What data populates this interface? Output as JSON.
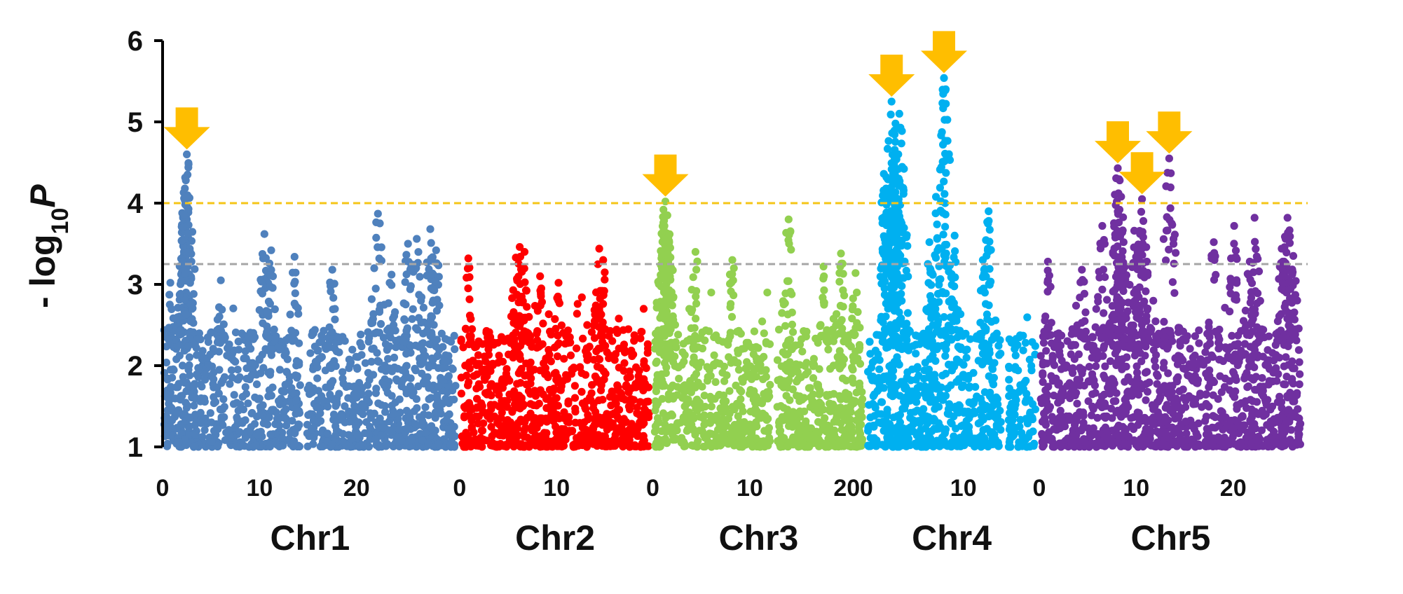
{
  "chart_data": {
    "type": "scatter",
    "title": "",
    "xlabel": "",
    "ylabel_main": "- log",
    "ylabel_sub": "10",
    "ylabel_italic": "P",
    "ylim": [
      1,
      6
    ],
    "y_ticks": [
      "1",
      "2",
      "3",
      "4",
      "5",
      "6"
    ],
    "thresholds": [
      {
        "value": 4.0,
        "color": "#F5C518",
        "style": "dashed"
      },
      {
        "value": 3.25,
        "color": "#A6A6A6",
        "style": "dashed"
      }
    ],
    "arrow_color": "#FFBE00",
    "grid": false,
    "legend": "none",
    "chromosomes": [
      {
        "name": "Chr1",
        "color": "#4F81BD",
        "length": 30.4,
        "ticks": [
          0,
          10,
          20
        ],
        "tick_labels": [
          "0",
          "10",
          "20"
        ],
        "gaps": [
          [
            14.2,
            14.9
          ]
        ],
        "peaks": [
          {
            "x": 2.5,
            "y": 4.6,
            "arrow": true
          },
          {
            "x": 2.4,
            "y": 4.28
          },
          {
            "x": 2.3,
            "y": 4.18
          },
          {
            "x": 2.2,
            "y": 3.86
          },
          {
            "x": 2.6,
            "y": 3.4
          },
          {
            "x": 2.1,
            "y": 3.28
          },
          {
            "x": 0.8,
            "y": 3.02
          },
          {
            "x": 10.5,
            "y": 3.62
          },
          {
            "x": 11.2,
            "y": 3.42
          },
          {
            "x": 13.6,
            "y": 3.34
          },
          {
            "x": 22.2,
            "y": 3.87
          },
          {
            "x": 26.2,
            "y": 3.56
          },
          {
            "x": 27.6,
            "y": 3.68
          },
          {
            "x": 28.2,
            "y": 3.42
          },
          {
            "x": 25.3,
            "y": 3.5
          },
          {
            "x": 17.5,
            "y": 3.18
          },
          {
            "x": 23.6,
            "y": 3.12
          },
          {
            "x": 6.0,
            "y": 3.05
          }
        ]
      },
      {
        "name": "Chr2",
        "color": "#FF0000",
        "length": 19.7,
        "ticks": [
          0,
          10
        ],
        "tick_labels": [
          "0",
          "10"
        ],
        "gaps": [],
        "peaks": [
          {
            "x": 0.9,
            "y": 3.32
          },
          {
            "x": 6.2,
            "y": 3.46
          },
          {
            "x": 6.7,
            "y": 3.4
          },
          {
            "x": 5.8,
            "y": 3.33
          },
          {
            "x": 14.4,
            "y": 3.44
          },
          {
            "x": 14.8,
            "y": 3.3
          },
          {
            "x": 8.3,
            "y": 3.1
          },
          {
            "x": 10.2,
            "y": 3.02
          }
        ]
      },
      {
        "name": "Chr3",
        "color": "#92D050",
        "length": 21.8,
        "ticks": [
          0,
          10,
          20
        ],
        "tick_labels": [
          "0",
          "10",
          "20"
        ],
        "gaps": [
          [
            12.1,
            12.8
          ]
        ],
        "peaks": [
          {
            "x": 1.3,
            "y": 4.02,
            "arrow": true
          },
          {
            "x": 1.1,
            "y": 3.92
          },
          {
            "x": 1.5,
            "y": 3.85
          },
          {
            "x": 1.2,
            "y": 3.72
          },
          {
            "x": 1.6,
            "y": 3.58
          },
          {
            "x": 1.8,
            "y": 3.45
          },
          {
            "x": 4.4,
            "y": 3.4
          },
          {
            "x": 14.0,
            "y": 3.8
          },
          {
            "x": 19.4,
            "y": 3.38
          },
          {
            "x": 8.2,
            "y": 3.3
          },
          {
            "x": 17.6,
            "y": 3.22
          },
          {
            "x": 20.9,
            "y": 3.14
          }
        ]
      },
      {
        "name": "Chr4",
        "color": "#00B0F0",
        "length": 17.6,
        "ticks": [
          0,
          10
        ],
        "tick_labels": [
          "0",
          "10"
        ],
        "gaps": [
          [
            13.9,
            14.6
          ]
        ],
        "peaks": [
          {
            "x": 2.6,
            "y": 5.25,
            "arrow": true
          },
          {
            "x": 3.4,
            "y": 5.1
          },
          {
            "x": 3.0,
            "y": 4.98
          },
          {
            "x": 3.3,
            "y": 4.42
          },
          {
            "x": 2.8,
            "y": 4.4
          },
          {
            "x": 1.8,
            "y": 4.36
          },
          {
            "x": 2.3,
            "y": 4.1
          },
          {
            "x": 3.1,
            "y": 4.06
          },
          {
            "x": 8.0,
            "y": 5.54,
            "arrow": true
          },
          {
            "x": 7.9,
            "y": 4.72
          },
          {
            "x": 12.6,
            "y": 3.9
          },
          {
            "x": 6.5,
            "y": 3.52
          },
          {
            "x": 7.3,
            "y": 3.56
          },
          {
            "x": 9.1,
            "y": 3.6
          },
          {
            "x": 12.0,
            "y": 3.3
          }
        ]
      },
      {
        "name": "Chr5",
        "color": "#7030A0",
        "length": 27.1,
        "ticks": [
          0,
          10,
          20
        ],
        "tick_labels": [
          "0",
          "10",
          "20"
        ],
        "gaps": [],
        "peaks": [
          {
            "x": 8.1,
            "y": 4.43,
            "arrow": true
          },
          {
            "x": 8.3,
            "y": 4.28
          },
          {
            "x": 8.0,
            "y": 4.02
          },
          {
            "x": 10.6,
            "y": 4.05,
            "arrow": true
          },
          {
            "x": 10.4,
            "y": 3.62
          },
          {
            "x": 13.4,
            "y": 4.55,
            "arrow": true
          },
          {
            "x": 6.5,
            "y": 3.72
          },
          {
            "x": 9.8,
            "y": 3.66
          },
          {
            "x": 8.7,
            "y": 3.52
          },
          {
            "x": 11.1,
            "y": 3.28
          },
          {
            "x": 0.9,
            "y": 3.28
          },
          {
            "x": 20.1,
            "y": 3.72
          },
          {
            "x": 22.2,
            "y": 3.82
          },
          {
            "x": 25.6,
            "y": 3.82
          },
          {
            "x": 25.4,
            "y": 3.56
          },
          {
            "x": 25.0,
            "y": 3.44
          },
          {
            "x": 26.2,
            "y": 3.35
          },
          {
            "x": 18.0,
            "y": 3.52
          },
          {
            "x": 21.7,
            "y": 3.28
          },
          {
            "x": 4.4,
            "y": 3.18
          }
        ]
      }
    ]
  }
}
